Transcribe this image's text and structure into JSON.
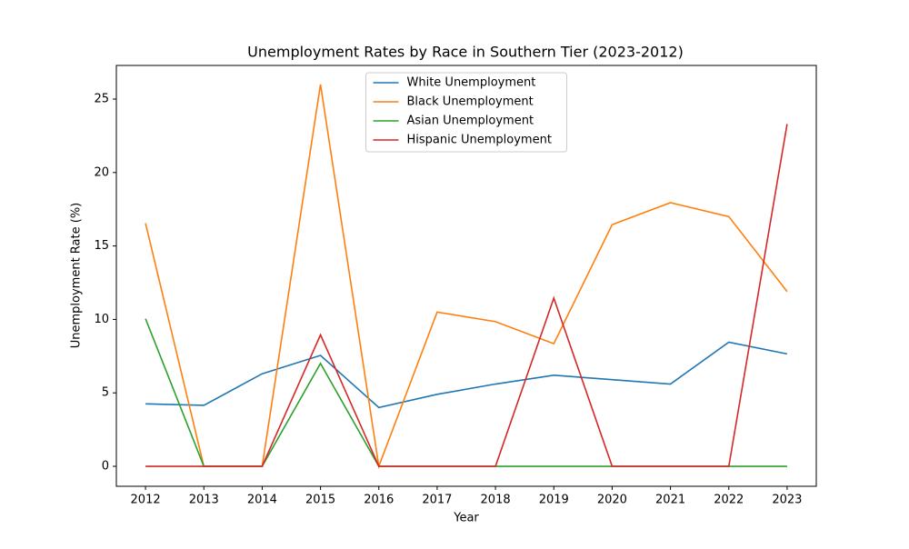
{
  "chart_data": {
    "type": "line",
    "title": "Unemployment Rates by Race in Southern Tier (2023-2012)",
    "x_label": "Year",
    "y_label": "Unemployment Rate (%)",
    "x": [
      2012,
      2013,
      2014,
      2015,
      2016,
      2017,
      2018,
      2019,
      2020,
      2021,
      2022,
      2023
    ],
    "series": [
      {
        "name": "White Unemployment",
        "color": "#1f77b4",
        "values": [
          4.25,
          4.15,
          6.3,
          7.55,
          4.0,
          4.9,
          5.6,
          6.2,
          5.9,
          5.6,
          8.45,
          7.65
        ]
      },
      {
        "name": "Black Unemployment",
        "color": "#ff7f0e",
        "values": [
          16.55,
          0,
          0,
          26.0,
          0,
          10.5,
          9.85,
          8.35,
          16.45,
          17.95,
          17.0,
          11.9
        ]
      },
      {
        "name": "Asian Unemployment",
        "color": "#2ca02c",
        "values": [
          10.05,
          0,
          0,
          7.0,
          0,
          0,
          0,
          0,
          0,
          0,
          0,
          0
        ]
      },
      {
        "name": "Hispanic Unemployment",
        "color": "#d62728",
        "values": [
          0,
          0,
          0,
          8.95,
          0,
          0,
          0,
          11.45,
          0,
          0,
          0,
          23.3
        ]
      }
    ],
    "xlim": [
      2011.5,
      2023.5
    ],
    "xticks": [
      2012,
      2013,
      2014,
      2015,
      2016,
      2017,
      2018,
      2019,
      2020,
      2021,
      2022,
      2023
    ],
    "ylim": [
      -1.36,
      27.29
    ],
    "yticks": [
      0,
      5,
      10,
      15,
      20,
      25
    ],
    "grid": false,
    "legend": "upper center"
  }
}
